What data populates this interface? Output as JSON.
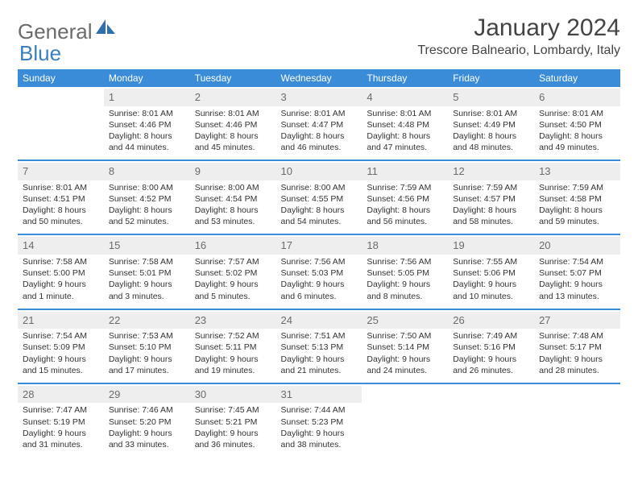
{
  "logo": {
    "text1": "General",
    "text2": "Blue"
  },
  "title": "January 2024",
  "location": "Trescore Balneario, Lombardy, Italy",
  "colors": {
    "header_bg": "#3a8bd8",
    "header_text": "#ffffff",
    "daynum_bg": "#eeeeee",
    "daynum_text": "#6b6b6b",
    "body_text": "#333333",
    "accent": "#3a7fc4"
  },
  "weekdays": [
    "Sunday",
    "Monday",
    "Tuesday",
    "Wednesday",
    "Thursday",
    "Friday",
    "Saturday"
  ],
  "weeks": [
    [
      null,
      {
        "n": "1",
        "l1": "Sunrise: 8:01 AM",
        "l2": "Sunset: 4:46 PM",
        "l3": "Daylight: 8 hours",
        "l4": "and 44 minutes."
      },
      {
        "n": "2",
        "l1": "Sunrise: 8:01 AM",
        "l2": "Sunset: 4:46 PM",
        "l3": "Daylight: 8 hours",
        "l4": "and 45 minutes."
      },
      {
        "n": "3",
        "l1": "Sunrise: 8:01 AM",
        "l2": "Sunset: 4:47 PM",
        "l3": "Daylight: 8 hours",
        "l4": "and 46 minutes."
      },
      {
        "n": "4",
        "l1": "Sunrise: 8:01 AM",
        "l2": "Sunset: 4:48 PM",
        "l3": "Daylight: 8 hours",
        "l4": "and 47 minutes."
      },
      {
        "n": "5",
        "l1": "Sunrise: 8:01 AM",
        "l2": "Sunset: 4:49 PM",
        "l3": "Daylight: 8 hours",
        "l4": "and 48 minutes."
      },
      {
        "n": "6",
        "l1": "Sunrise: 8:01 AM",
        "l2": "Sunset: 4:50 PM",
        "l3": "Daylight: 8 hours",
        "l4": "and 49 minutes."
      }
    ],
    [
      {
        "n": "7",
        "l1": "Sunrise: 8:01 AM",
        "l2": "Sunset: 4:51 PM",
        "l3": "Daylight: 8 hours",
        "l4": "and 50 minutes."
      },
      {
        "n": "8",
        "l1": "Sunrise: 8:00 AM",
        "l2": "Sunset: 4:52 PM",
        "l3": "Daylight: 8 hours",
        "l4": "and 52 minutes."
      },
      {
        "n": "9",
        "l1": "Sunrise: 8:00 AM",
        "l2": "Sunset: 4:54 PM",
        "l3": "Daylight: 8 hours",
        "l4": "and 53 minutes."
      },
      {
        "n": "10",
        "l1": "Sunrise: 8:00 AM",
        "l2": "Sunset: 4:55 PM",
        "l3": "Daylight: 8 hours",
        "l4": "and 54 minutes."
      },
      {
        "n": "11",
        "l1": "Sunrise: 7:59 AM",
        "l2": "Sunset: 4:56 PM",
        "l3": "Daylight: 8 hours",
        "l4": "and 56 minutes."
      },
      {
        "n": "12",
        "l1": "Sunrise: 7:59 AM",
        "l2": "Sunset: 4:57 PM",
        "l3": "Daylight: 8 hours",
        "l4": "and 58 minutes."
      },
      {
        "n": "13",
        "l1": "Sunrise: 7:59 AM",
        "l2": "Sunset: 4:58 PM",
        "l3": "Daylight: 8 hours",
        "l4": "and 59 minutes."
      }
    ],
    [
      {
        "n": "14",
        "l1": "Sunrise: 7:58 AM",
        "l2": "Sunset: 5:00 PM",
        "l3": "Daylight: 9 hours",
        "l4": "and 1 minute."
      },
      {
        "n": "15",
        "l1": "Sunrise: 7:58 AM",
        "l2": "Sunset: 5:01 PM",
        "l3": "Daylight: 9 hours",
        "l4": "and 3 minutes."
      },
      {
        "n": "16",
        "l1": "Sunrise: 7:57 AM",
        "l2": "Sunset: 5:02 PM",
        "l3": "Daylight: 9 hours",
        "l4": "and 5 minutes."
      },
      {
        "n": "17",
        "l1": "Sunrise: 7:56 AM",
        "l2": "Sunset: 5:03 PM",
        "l3": "Daylight: 9 hours",
        "l4": "and 6 minutes."
      },
      {
        "n": "18",
        "l1": "Sunrise: 7:56 AM",
        "l2": "Sunset: 5:05 PM",
        "l3": "Daylight: 9 hours",
        "l4": "and 8 minutes."
      },
      {
        "n": "19",
        "l1": "Sunrise: 7:55 AM",
        "l2": "Sunset: 5:06 PM",
        "l3": "Daylight: 9 hours",
        "l4": "and 10 minutes."
      },
      {
        "n": "20",
        "l1": "Sunrise: 7:54 AM",
        "l2": "Sunset: 5:07 PM",
        "l3": "Daylight: 9 hours",
        "l4": "and 13 minutes."
      }
    ],
    [
      {
        "n": "21",
        "l1": "Sunrise: 7:54 AM",
        "l2": "Sunset: 5:09 PM",
        "l3": "Daylight: 9 hours",
        "l4": "and 15 minutes."
      },
      {
        "n": "22",
        "l1": "Sunrise: 7:53 AM",
        "l2": "Sunset: 5:10 PM",
        "l3": "Daylight: 9 hours",
        "l4": "and 17 minutes."
      },
      {
        "n": "23",
        "l1": "Sunrise: 7:52 AM",
        "l2": "Sunset: 5:11 PM",
        "l3": "Daylight: 9 hours",
        "l4": "and 19 minutes."
      },
      {
        "n": "24",
        "l1": "Sunrise: 7:51 AM",
        "l2": "Sunset: 5:13 PM",
        "l3": "Daylight: 9 hours",
        "l4": "and 21 minutes."
      },
      {
        "n": "25",
        "l1": "Sunrise: 7:50 AM",
        "l2": "Sunset: 5:14 PM",
        "l3": "Daylight: 9 hours",
        "l4": "and 24 minutes."
      },
      {
        "n": "26",
        "l1": "Sunrise: 7:49 AM",
        "l2": "Sunset: 5:16 PM",
        "l3": "Daylight: 9 hours",
        "l4": "and 26 minutes."
      },
      {
        "n": "27",
        "l1": "Sunrise: 7:48 AM",
        "l2": "Sunset: 5:17 PM",
        "l3": "Daylight: 9 hours",
        "l4": "and 28 minutes."
      }
    ],
    [
      {
        "n": "28",
        "l1": "Sunrise: 7:47 AM",
        "l2": "Sunset: 5:19 PM",
        "l3": "Daylight: 9 hours",
        "l4": "and 31 minutes."
      },
      {
        "n": "29",
        "l1": "Sunrise: 7:46 AM",
        "l2": "Sunset: 5:20 PM",
        "l3": "Daylight: 9 hours",
        "l4": "and 33 minutes."
      },
      {
        "n": "30",
        "l1": "Sunrise: 7:45 AM",
        "l2": "Sunset: 5:21 PM",
        "l3": "Daylight: 9 hours",
        "l4": "and 36 minutes."
      },
      {
        "n": "31",
        "l1": "Sunrise: 7:44 AM",
        "l2": "Sunset: 5:23 PM",
        "l3": "Daylight: 9 hours",
        "l4": "and 38 minutes."
      },
      null,
      null,
      null
    ]
  ]
}
